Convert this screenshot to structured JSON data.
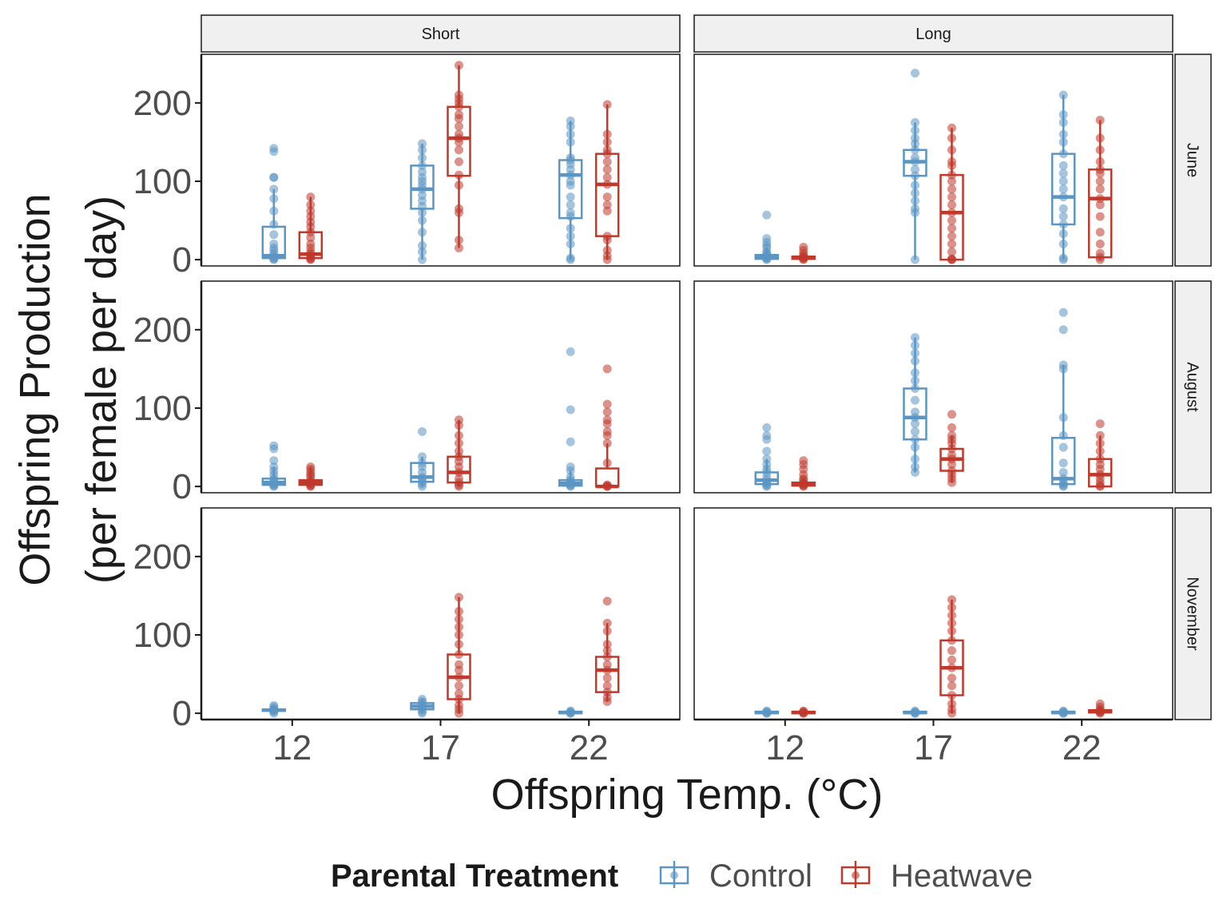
{
  "chart_data": {
    "type": "box",
    "xlabel": "Offspring Temp. (°C)",
    "ylabel_line1": "Offspring Production",
    "ylabel_line2": "(per female per day)",
    "ylim": [
      -8,
      262
    ],
    "yticks": [
      0,
      100,
      200
    ],
    "x_categories": [
      "12",
      "17",
      "22"
    ],
    "col_facets": [
      "Short",
      "Long"
    ],
    "row_facets": [
      "June",
      "August",
      "November"
    ],
    "legend": {
      "title": "Parental Treatment",
      "position": "bottom",
      "entries": [
        {
          "name": "Control",
          "color": "#5b95c4"
        },
        {
          "name": "Heatwave",
          "color": "#c0392b"
        }
      ]
    },
    "panels": [
      {
        "col": "Short",
        "row": "June",
        "groups": [
          {
            "temp": "12",
            "treatment": "Control",
            "q1": 2,
            "median": 5,
            "q3": 42,
            "whisker_low": 0,
            "whisker_high": 90,
            "points": [
              0,
              1,
              2,
              3,
              5,
              8,
              12,
              15,
              20,
              32,
              45,
              62,
              78,
              90,
              105,
              105,
              138,
              142
            ]
          },
          {
            "temp": "12",
            "treatment": "Heatwave",
            "q1": 2,
            "median": 7,
            "q3": 35,
            "whisker_low": 0,
            "whisker_high": 80,
            "points": [
              0,
              1,
              2,
              4,
              7,
              10,
              15,
              20,
              28,
              35,
              42,
              48,
              55,
              62,
              70,
              80
            ]
          },
          {
            "temp": "17",
            "treatment": "Control",
            "q1": 65,
            "median": 90,
            "q3": 120,
            "whisker_low": 0,
            "whisker_high": 148,
            "points": [
              0,
              10,
              18,
              35,
              50,
              60,
              68,
              75,
              82,
              90,
              95,
              100,
              105,
              112,
              120,
              130,
              140,
              148
            ]
          },
          {
            "temp": "17",
            "treatment": "Heatwave",
            "q1": 107,
            "median": 155,
            "q3": 195,
            "whisker_low": 15,
            "whisker_high": 248,
            "points": [
              15,
              25,
              60,
              65,
              95,
              108,
              125,
              140,
              150,
              155,
              160,
              170,
              180,
              185,
              195,
              200,
              205,
              210,
              248
            ]
          },
          {
            "temp": "22",
            "treatment": "Control",
            "q1": 53,
            "median": 108,
            "q3": 127,
            "whisker_low": 0,
            "whisker_high": 177,
            "points": [
              0,
              2,
              20,
              30,
              40,
              55,
              60,
              70,
              80,
              95,
              100,
              108,
              115,
              122,
              127,
              130,
              150,
              160,
              170,
              177
            ]
          },
          {
            "temp": "22",
            "treatment": "Heatwave",
            "q1": 30,
            "median": 96,
            "q3": 135,
            "whisker_low": 0,
            "whisker_high": 198,
            "points": [
              0,
              5,
              12,
              25,
              30,
              62,
              70,
              80,
              96,
              105,
              115,
              125,
              135,
              140,
              150,
              160,
              198
            ]
          }
        ]
      },
      {
        "col": "Long",
        "row": "June",
        "groups": [
          {
            "temp": "12",
            "treatment": "Control",
            "q1": 1,
            "median": 3,
            "q3": 6,
            "whisker_low": 0,
            "whisker_high": 15,
            "points": [
              0,
              1,
              2,
              3,
              4,
              6,
              8,
              10,
              15,
              18,
              22,
              27,
              57
            ]
          },
          {
            "temp": "12",
            "treatment": "Heatwave",
            "q1": 1,
            "median": 2,
            "q3": 4,
            "whisker_low": 0,
            "whisker_high": 8,
            "points": [
              0,
              1,
              2,
              3,
              4,
              5,
              8,
              12,
              16
            ]
          },
          {
            "temp": "17",
            "treatment": "Control",
            "q1": 107,
            "median": 125,
            "q3": 140,
            "whisker_low": 0,
            "whisker_high": 175,
            "points": [
              0,
              60,
              65,
              75,
              85,
              95,
              107,
              115,
              125,
              130,
              140,
              148,
              155,
              165,
              175,
              238
            ]
          },
          {
            "temp": "17",
            "treatment": "Heatwave",
            "q1": 0,
            "median": 60,
            "q3": 108,
            "whisker_low": 0,
            "whisker_high": 168,
            "points": [
              0,
              0,
              1,
              10,
              20,
              30,
              40,
              50,
              60,
              70,
              80,
              90,
              100,
              108,
              120,
              125,
              140,
              155,
              168
            ]
          },
          {
            "temp": "22",
            "treatment": "Control",
            "q1": 45,
            "median": 80,
            "q3": 135,
            "whisker_low": 0,
            "whisker_high": 210,
            "points": [
              0,
              2,
              20,
              33,
              45,
              55,
              65,
              80,
              90,
              100,
              110,
              120,
              135,
              150,
              160,
              175,
              185,
              210
            ]
          },
          {
            "temp": "22",
            "treatment": "Heatwave",
            "q1": 3,
            "median": 78,
            "q3": 115,
            "whisker_low": 0,
            "whisker_high": 178,
            "points": [
              0,
              3,
              8,
              20,
              35,
              55,
              70,
              78,
              90,
              100,
              110,
              115,
              125,
              140,
              155,
              178
            ]
          }
        ]
      },
      {
        "col": "Short",
        "row": "August",
        "groups": [
          {
            "temp": "12",
            "treatment": "Control",
            "q1": 2,
            "median": 5,
            "q3": 10,
            "whisker_low": 0,
            "whisker_high": 25,
            "points": [
              0,
              1,
              2,
              3,
              5,
              8,
              10,
              15,
              20,
              25,
              33,
              48,
              52
            ]
          },
          {
            "temp": "12",
            "treatment": "Heatwave",
            "q1": 2,
            "median": 5,
            "q3": 8,
            "whisker_low": 0,
            "whisker_high": 25,
            "points": [
              0,
              1,
              2,
              4,
              5,
              8,
              12,
              15,
              18,
              22,
              25
            ]
          },
          {
            "temp": "17",
            "treatment": "Control",
            "q1": 6,
            "median": 12,
            "q3": 30,
            "whisker_low": 0,
            "whisker_high": 38,
            "points": [
              0,
              3,
              6,
              10,
              12,
              18,
              25,
              30,
              38,
              70
            ]
          },
          {
            "temp": "17",
            "treatment": "Heatwave",
            "q1": 5,
            "median": 18,
            "q3": 38,
            "whisker_low": 0,
            "whisker_high": 85,
            "points": [
              0,
              2,
              5,
              10,
              18,
              25,
              32,
              38,
              45,
              55,
              65,
              78,
              85
            ]
          },
          {
            "temp": "22",
            "treatment": "Control",
            "q1": 1,
            "median": 4,
            "q3": 8,
            "whisker_low": 0,
            "whisker_high": 20,
            "points": [
              0,
              1,
              2,
              4,
              6,
              8,
              12,
              20,
              25,
              57,
              98,
              172
            ]
          },
          {
            "temp": "22",
            "treatment": "Heatwave",
            "q1": 0,
            "median": 0,
            "q3": 23,
            "whisker_low": 0,
            "whisker_high": 55,
            "points": [
              0,
              0,
              1,
              2,
              30,
              55,
              65,
              70,
              80,
              85,
              95,
              105,
              150
            ]
          }
        ]
      },
      {
        "col": "Long",
        "row": "August",
        "groups": [
          {
            "temp": "12",
            "treatment": "Control",
            "q1": 3,
            "median": 8,
            "q3": 18,
            "whisker_low": 0,
            "whisker_high": 35,
            "points": [
              0,
              1,
              3,
              5,
              8,
              12,
              18,
              22,
              28,
              35,
              45,
              60,
              65,
              75
            ]
          },
          {
            "temp": "12",
            "treatment": "Heatwave",
            "q1": 1,
            "median": 3,
            "q3": 5,
            "whisker_low": 0,
            "whisker_high": 10,
            "points": [
              0,
              1,
              2,
              3,
              5,
              8,
              10,
              15,
              22,
              28,
              33
            ]
          },
          {
            "temp": "17",
            "treatment": "Control",
            "q1": 60,
            "median": 88,
            "q3": 125,
            "whisker_low": 18,
            "whisker_high": 190,
            "points": [
              18,
              25,
              35,
              50,
              60,
              70,
              80,
              88,
              95,
              110,
              125,
              135,
              145,
              160,
              170,
              180,
              190
            ]
          },
          {
            "temp": "17",
            "treatment": "Heatwave",
            "q1": 20,
            "median": 35,
            "q3": 48,
            "whisker_low": 5,
            "whisker_high": 65,
            "points": [
              5,
              10,
              15,
              20,
              28,
              35,
              40,
              48,
              55,
              60,
              65,
              75,
              92
            ]
          },
          {
            "temp": "22",
            "treatment": "Control",
            "q1": 3,
            "median": 10,
            "q3": 62,
            "whisker_low": 0,
            "whisker_high": 155,
            "points": [
              0,
              1,
              3,
              5,
              10,
              18,
              30,
              50,
              65,
              88,
              150,
              155,
              200,
              222
            ]
          },
          {
            "temp": "22",
            "treatment": "Heatwave",
            "q1": 0,
            "median": 15,
            "q3": 35,
            "whisker_low": 0,
            "whisker_high": 65,
            "points": [
              0,
              1,
              5,
              10,
              15,
              22,
              28,
              35,
              45,
              55,
              65,
              80
            ]
          }
        ]
      },
      {
        "col": "Short",
        "row": "November",
        "groups": [
          {
            "temp": "12",
            "treatment": "Control",
            "q1": 3,
            "median": 4,
            "q3": 5,
            "whisker_low": 0,
            "whisker_high": 8,
            "points": [
              0,
              2,
              3,
              4,
              5,
              6,
              8,
              10
            ]
          },
          {
            "temp": "17",
            "treatment": "Control",
            "q1": 5,
            "median": 9,
            "q3": 13,
            "whisker_low": 0,
            "whisker_high": 18,
            "points": [
              0,
              2,
              5,
              8,
              10,
              13,
              15,
              18
            ]
          },
          {
            "temp": "17",
            "treatment": "Heatwave",
            "q1": 18,
            "median": 46,
            "q3": 75,
            "whisker_low": 0,
            "whisker_high": 148,
            "points": [
              0,
              5,
              10,
              18,
              25,
              35,
              46,
              55,
              62,
              75,
              88,
              100,
              110,
              120,
              130,
              148
            ]
          },
          {
            "temp": "22",
            "treatment": "Control",
            "q1": 0,
            "median": 1,
            "q3": 2,
            "whisker_low": 0,
            "whisker_high": 3,
            "points": [
              0,
              0,
              1,
              2,
              3
            ]
          },
          {
            "temp": "22",
            "treatment": "Heatwave",
            "q1": 27,
            "median": 55,
            "q3": 72,
            "whisker_low": 15,
            "whisker_high": 115,
            "points": [
              15,
              20,
              27,
              35,
              45,
              55,
              62,
              72,
              80,
              88,
              105,
              115,
              143
            ]
          }
        ]
      },
      {
        "col": "Long",
        "row": "November",
        "groups": [
          {
            "temp": "12",
            "treatment": "Control",
            "q1": 0,
            "median": 1,
            "q3": 2,
            "whisker_low": 0,
            "whisker_high": 3,
            "points": [
              0,
              0,
              1,
              2,
              3
            ]
          },
          {
            "temp": "12",
            "treatment": "Heatwave",
            "q1": 0,
            "median": 1,
            "q3": 2,
            "whisker_low": 0,
            "whisker_high": 3,
            "points": [
              0,
              0,
              1,
              2,
              3
            ]
          },
          {
            "temp": "17",
            "treatment": "Control",
            "q1": 0,
            "median": 1,
            "q3": 2,
            "whisker_low": 0,
            "whisker_high": 3,
            "points": [
              0,
              0,
              1,
              2,
              3
            ]
          },
          {
            "temp": "17",
            "treatment": "Heatwave",
            "q1": 23,
            "median": 58,
            "q3": 93,
            "whisker_low": 0,
            "whisker_high": 145,
            "points": [
              0,
              5,
              12,
              23,
              35,
              45,
              58,
              68,
              80,
              93,
              105,
              115,
              125,
              135,
              145
            ]
          },
          {
            "temp": "22",
            "treatment": "Control",
            "q1": 0,
            "median": 1,
            "q3": 2,
            "whisker_low": 0,
            "whisker_high": 3,
            "points": [
              0,
              0,
              1,
              2,
              3
            ]
          },
          {
            "temp": "22",
            "treatment": "Heatwave",
            "q1": 1,
            "median": 2,
            "q3": 4,
            "whisker_low": 0,
            "whisker_high": 8,
            "points": [
              0,
              1,
              2,
              3,
              5,
              8,
              12
            ]
          }
        ]
      }
    ]
  }
}
